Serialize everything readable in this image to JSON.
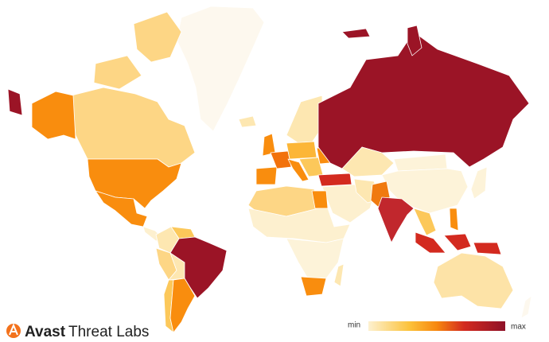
{
  "logo": {
    "brand": "Avast",
    "product": "Threat Labs"
  },
  "legend": {
    "min": "min",
    "max": "max"
  }
}
